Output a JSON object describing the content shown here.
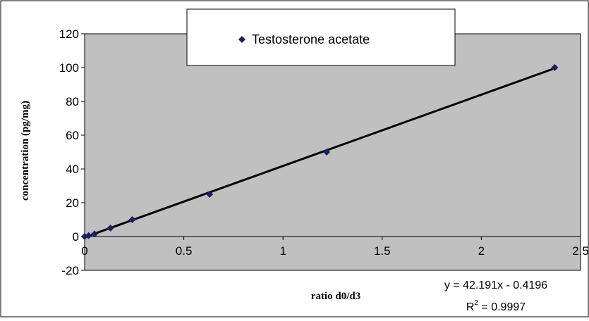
{
  "chart_data": {
    "type": "scatter",
    "xlabel": "ratio d0/d3",
    "ylabel": "concentration (pg/mg)",
    "xlim": [
      0,
      2.5
    ],
    "ylim": [
      -20,
      120
    ],
    "x_ticks": [
      "0",
      "0.5",
      "1",
      "1.5",
      "2",
      "2.5"
    ],
    "y_ticks": [
      "-20",
      "0",
      "20",
      "40",
      "60",
      "80",
      "100",
      "120"
    ],
    "grid": false,
    "legend_position": "top-center",
    "series": [
      {
        "name": "Testosterone acetate",
        "marker": "diamond",
        "color": "#1f1f5c",
        "points": [
          {
            "x": 0.0,
            "y": 0
          },
          {
            "x": 0.02,
            "y": 0.5
          },
          {
            "x": 0.05,
            "y": 1.5
          },
          {
            "x": 0.13,
            "y": 5
          },
          {
            "x": 0.24,
            "y": 10
          },
          {
            "x": 0.63,
            "y": 25
          },
          {
            "x": 1.22,
            "y": 50
          },
          {
            "x": 2.37,
            "y": 100
          }
        ]
      }
    ],
    "trendline": {
      "slope": 42.191,
      "intercept": -0.4196,
      "x_range": [
        0.0,
        2.37
      ],
      "equation_label": "y = 42.191x - 0.4196",
      "r2_prefix": "R",
      "r2_sup": "2",
      "r2_suffix": " = 0.9997"
    },
    "colors": {
      "plot_area": "#c0c0c0",
      "line": "#000000",
      "marker": "#1f1f5c"
    }
  }
}
